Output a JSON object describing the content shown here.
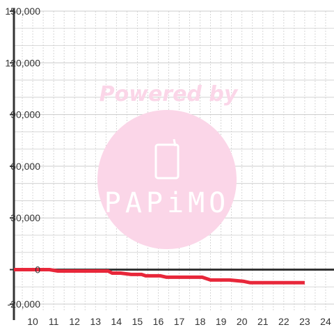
{
  "chart_data": {
    "type": "line",
    "title": "",
    "xlabel": "",
    "ylabel": "",
    "xlim": [
      9.1,
      24.4
    ],
    "ylim": [
      -22000,
      150000
    ],
    "x_ticks": [
      10,
      11,
      12,
      13,
      14,
      15,
      16,
      17,
      18,
      19,
      20,
      21,
      22,
      23,
      24
    ],
    "x_tick_labels": [
      "10",
      "11",
      "12",
      "13",
      "14",
      "15",
      "16",
      "17",
      "18",
      "19",
      "20",
      "21",
      "22",
      "23",
      "24"
    ],
    "y_ticks": [
      150000,
      120000,
      90000,
      60000,
      30000,
      0,
      -20000
    ],
    "y_tick_labels": [
      "150,000",
      "120,000",
      "90,000",
      "60,000",
      "30,000",
      "0",
      "-20,000"
    ],
    "grid": true,
    "legend": "none",
    "series": [
      {
        "color": "#e8273a",
        "points": [
          {
            "x": 9.1,
            "y": 0
          },
          {
            "x": 10.8,
            "y": 0
          },
          {
            "x": 11.2,
            "y": -800
          },
          {
            "x": 13.6,
            "y": -800
          },
          {
            "x": 13.8,
            "y": -2000
          },
          {
            "x": 14.2,
            "y": -2000
          },
          {
            "x": 14.7,
            "y": -2800
          },
          {
            "x": 15.2,
            "y": -2800
          },
          {
            "x": 15.4,
            "y": -3600
          },
          {
            "x": 16.1,
            "y": -3600
          },
          {
            "x": 16.4,
            "y": -4400
          },
          {
            "x": 17.9,
            "y": -4400
          },
          {
            "x": 18.1,
            "y": -4400
          },
          {
            "x": 18.5,
            "y": -6000
          },
          {
            "x": 19.4,
            "y": -6000
          },
          {
            "x": 20.1,
            "y": -6800
          },
          {
            "x": 20.4,
            "y": -7600
          },
          {
            "x": 23.0,
            "y": -7600
          }
        ]
      }
    ],
    "colors": {
      "grid": "#cccccc",
      "axis": "#333333",
      "line": "#e8273a"
    }
  },
  "watermark": {
    "top_text": "Powered by",
    "brand_text": "PAPiMO",
    "color": "#fbd6e8",
    "icon": "phone-icon"
  }
}
